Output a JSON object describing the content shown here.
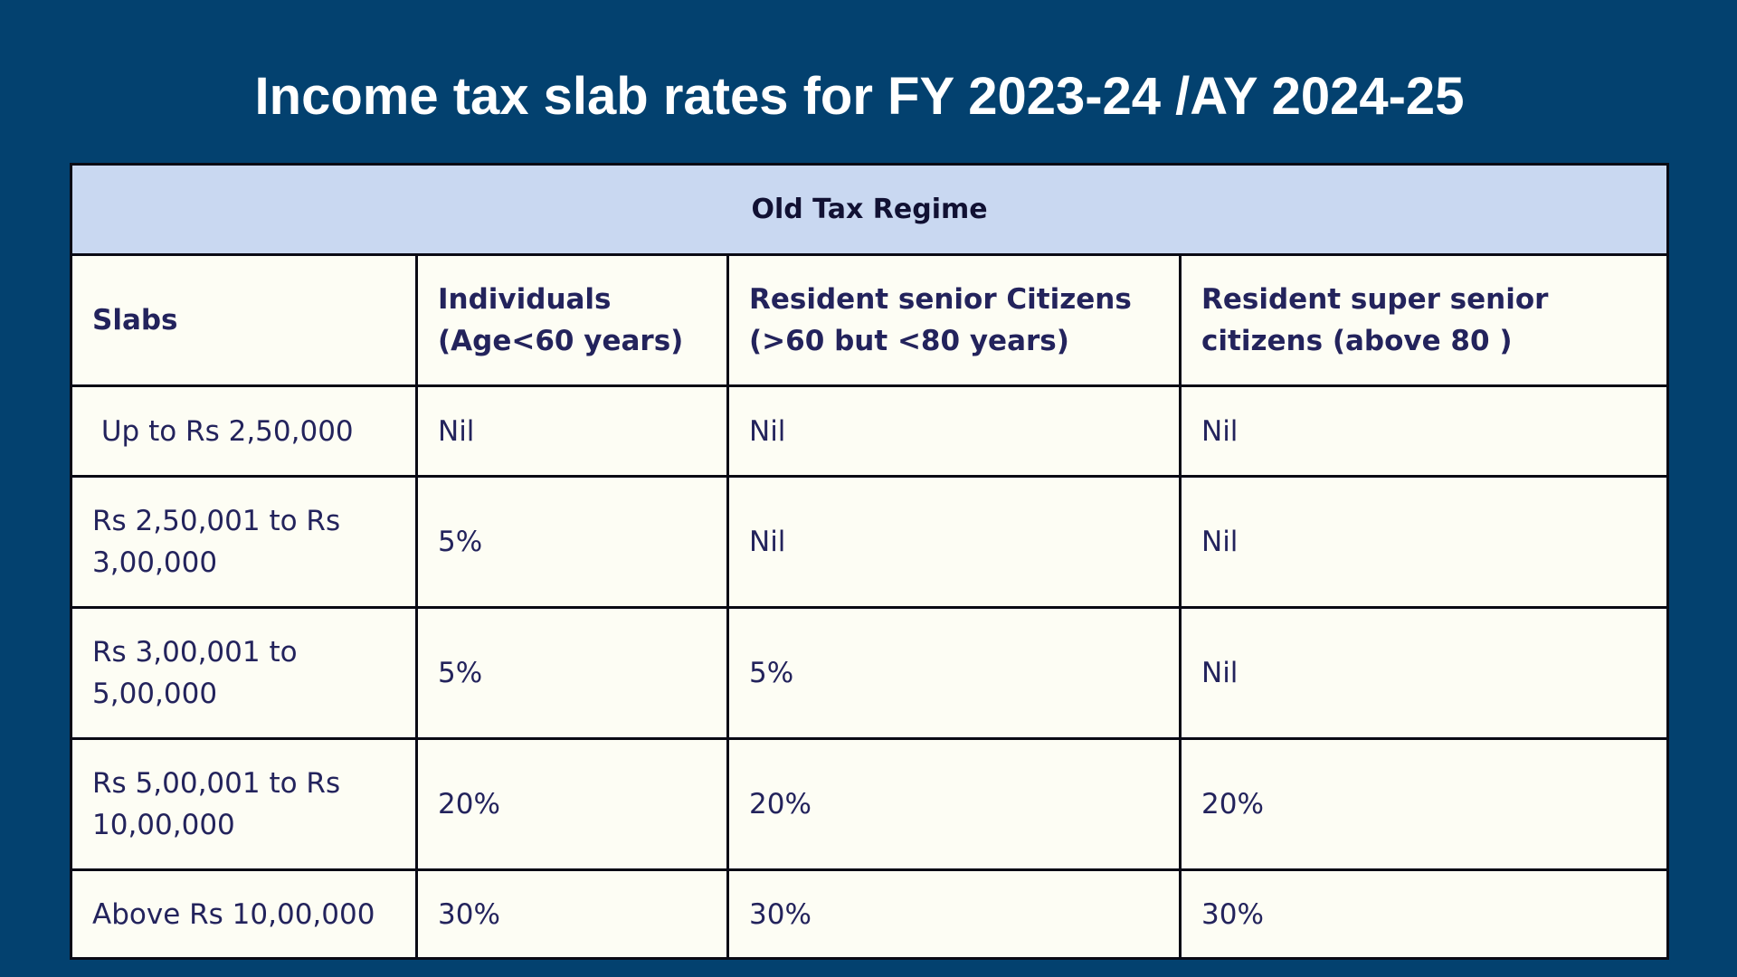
{
  "title": "Income tax slab rates for FY 2023-24 /AY 2024-25",
  "table": {
    "regime": "Old Tax Regime",
    "headers": [
      "Slabs",
      "Individuals (Age<60 years)",
      "Resident senior Citizens (>60 but <80 years)",
      "Resident super senior citizens (above 80 )"
    ],
    "rows": [
      [
        " Up to Rs 2,50,000",
        "Nil",
        "Nil",
        "Nil"
      ],
      [
        "Rs 2,50,001 to Rs 3,00,000",
        "5%",
        "Nil",
        "Nil"
      ],
      [
        "Rs 3,00,001 to 5,00,000",
        "5%",
        "5%",
        "Nil"
      ],
      [
        "Rs 5,00,001 to Rs 10,00,000",
        "20%",
        "20%",
        "20%"
      ],
      [
        "Above Rs 10,00,000",
        "30%",
        "30%",
        "30%"
      ]
    ]
  },
  "colors": {
    "background": "#03416f",
    "title_text": "#ffffff",
    "regime_header_bg": "#c9d8f1",
    "cell_bg": "#fdfdf4",
    "cell_text": "#23235c",
    "border": "#0a0a14"
  }
}
